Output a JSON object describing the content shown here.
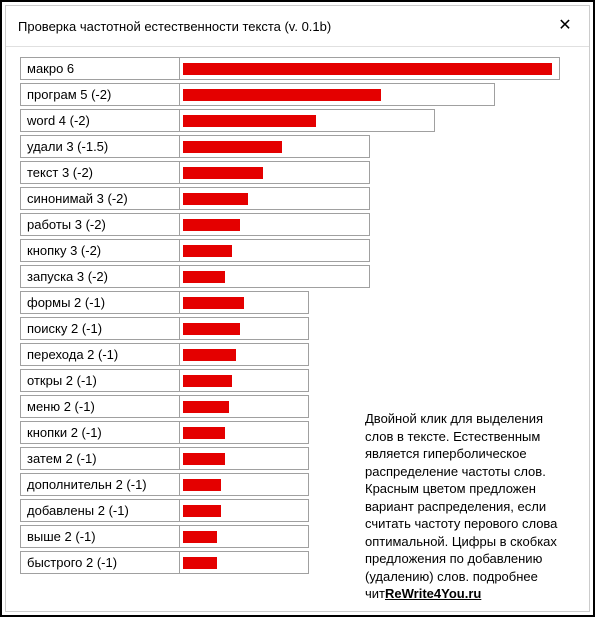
{
  "window": {
    "title": "Проверка частотной естественности текста (v. 0.1b)"
  },
  "colors": {
    "bar_fill": "#e40000",
    "bar_border": "#a0a0a0",
    "background": "#ffffff"
  },
  "max_container_width": 380,
  "bars": [
    {
      "label": "макро 6",
      "container_pct": 1.0,
      "fill_pct": 0.97
    },
    {
      "label": "програм 5 (-2)",
      "container_pct": 0.83,
      "fill_pct": 0.52
    },
    {
      "label": "word 4 (-2)",
      "container_pct": 0.67,
      "fill_pct": 0.35
    },
    {
      "label": "удали 3 (-1.5)",
      "container_pct": 0.5,
      "fill_pct": 0.26
    },
    {
      "label": "текст 3 (-2)",
      "container_pct": 0.5,
      "fill_pct": 0.21
    },
    {
      "label": "синонимай 3 (-2)",
      "container_pct": 0.5,
      "fill_pct": 0.17
    },
    {
      "label": "работы 3 (-2)",
      "container_pct": 0.5,
      "fill_pct": 0.15
    },
    {
      "label": "кнопку 3 (-2)",
      "container_pct": 0.5,
      "fill_pct": 0.13
    },
    {
      "label": "запуска 3 (-2)",
      "container_pct": 0.5,
      "fill_pct": 0.11
    },
    {
      "label": "формы 2 (-1)",
      "container_pct": 0.34,
      "fill_pct": 0.16
    },
    {
      "label": "поиску 2 (-1)",
      "container_pct": 0.34,
      "fill_pct": 0.15
    },
    {
      "label": "перехода 2 (-1)",
      "container_pct": 0.34,
      "fill_pct": 0.14
    },
    {
      "label": "откры 2 (-1)",
      "container_pct": 0.34,
      "fill_pct": 0.13
    },
    {
      "label": "меню 2 (-1)",
      "container_pct": 0.34,
      "fill_pct": 0.12
    },
    {
      "label": "кнопки 2 (-1)",
      "container_pct": 0.34,
      "fill_pct": 0.11
    },
    {
      "label": "затем 2 (-1)",
      "container_pct": 0.34,
      "fill_pct": 0.11
    },
    {
      "label": "дополнительн 2 (-1)",
      "container_pct": 0.34,
      "fill_pct": 0.1
    },
    {
      "label": "добавлены 2 (-1)",
      "container_pct": 0.34,
      "fill_pct": 0.1
    },
    {
      "label": "выше 2 (-1)",
      "container_pct": 0.34,
      "fill_pct": 0.09
    },
    {
      "label": "быстрого 2 (-1)",
      "container_pct": 0.34,
      "fill_pct": 0.09
    }
  ],
  "info": {
    "text": "Двойной клик для выделения слов в тексте. Естественным является гиперболическое распределение частоты слов. Красным цветом предложен вариант распределения, если считать частоту перового слова оптимальной. Цифры в скобках предложения по добавлению (удалению) слов. подробнее чит",
    "link_text": "ReWrite4You.ru"
  }
}
